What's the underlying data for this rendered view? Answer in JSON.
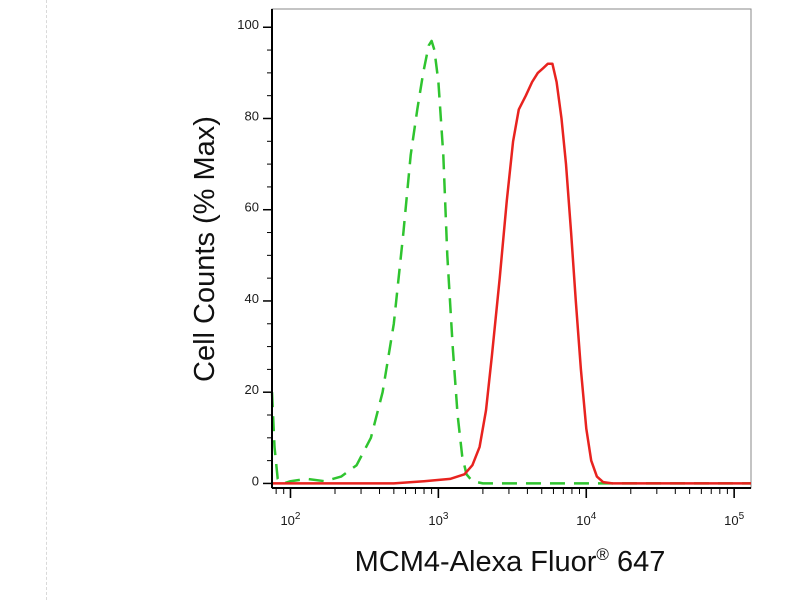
{
  "chart_data": {
    "type": "line",
    "xlabel": {
      "main": "MCM4-Alexa Fluor",
      "mark": "®",
      "suffix": " 647"
    },
    "ylabel": "Cell Counts (% Max)",
    "x_scale": "log",
    "xlim": [
      75,
      130000
    ],
    "ylim": [
      -1,
      104
    ],
    "y_ticks": [
      {
        "value": 0,
        "label": "0"
      },
      {
        "value": 20,
        "label": "20"
      },
      {
        "value": 40,
        "label": "40"
      },
      {
        "value": 60,
        "label": "60"
      },
      {
        "value": 80,
        "label": "80"
      },
      {
        "value": 100,
        "label": "100"
      }
    ],
    "x_ticks": [
      {
        "value": 100,
        "base": "10",
        "exp": "2"
      },
      {
        "value": 1000,
        "base": "10",
        "exp": "3"
      },
      {
        "value": 10000,
        "base": "10",
        "exp": "4"
      },
      {
        "value": 100000,
        "base": "10",
        "exp": "5"
      }
    ],
    "grid": false,
    "legend": "none",
    "series": [
      {
        "color": "#2fc42f",
        "style": "dashed",
        "points": [
          [
            75,
            20
          ],
          [
            78,
            8
          ],
          [
            82,
            1
          ],
          [
            90,
            0
          ],
          [
            100,
            0.5
          ],
          [
            130,
            1
          ],
          [
            170,
            0.5
          ],
          [
            220,
            1.5
          ],
          [
            280,
            4
          ],
          [
            350,
            10
          ],
          [
            420,
            20
          ],
          [
            500,
            35
          ],
          [
            580,
            55
          ],
          [
            650,
            72
          ],
          [
            720,
            82
          ],
          [
            790,
            90
          ],
          [
            860,
            96
          ],
          [
            900,
            97
          ],
          [
            940,
            95
          ],
          [
            1000,
            88
          ],
          [
            1080,
            72
          ],
          [
            1150,
            50
          ],
          [
            1250,
            30
          ],
          [
            1350,
            15
          ],
          [
            1450,
            6
          ],
          [
            1550,
            2
          ],
          [
            1700,
            0.5
          ],
          [
            2000,
            0
          ],
          [
            130000,
            0
          ]
        ]
      },
      {
        "color": "#e8231f",
        "style": "solid",
        "points": [
          [
            75,
            0
          ],
          [
            500,
            0
          ],
          [
            800,
            0.5
          ],
          [
            1200,
            1
          ],
          [
            1500,
            2
          ],
          [
            1700,
            4
          ],
          [
            1900,
            8
          ],
          [
            2100,
            16
          ],
          [
            2300,
            28
          ],
          [
            2600,
            45
          ],
          [
            2900,
            62
          ],
          [
            3200,
            75
          ],
          [
            3500,
            82
          ],
          [
            3900,
            85
          ],
          [
            4300,
            88
          ],
          [
            4700,
            90
          ],
          [
            5100,
            91
          ],
          [
            5500,
            92
          ],
          [
            5900,
            92
          ],
          [
            6300,
            88
          ],
          [
            6800,
            80
          ],
          [
            7300,
            70
          ],
          [
            7900,
            55
          ],
          [
            8500,
            40
          ],
          [
            9200,
            25
          ],
          [
            10000,
            12
          ],
          [
            10800,
            5
          ],
          [
            11800,
            1.5
          ],
          [
            13000,
            0.3
          ],
          [
            15000,
            0
          ],
          [
            130000,
            0
          ]
        ]
      }
    ]
  }
}
